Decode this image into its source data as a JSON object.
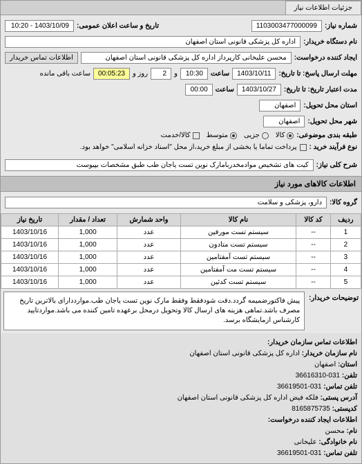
{
  "tab": {
    "label": "جزئیات اطلاعات نیاز"
  },
  "top": {
    "req_no_label": "شماره نیاز:",
    "req_no": "1103003477000099",
    "announce_label": "تاریخ و ساعت اعلان عمومی:",
    "announce_val": "1403/10/09 - 10:20",
    "buyer_label": "نام دستگاه خریدار:",
    "buyer": "اداره کل پزشکی قانونی استان اصفهان",
    "creator_label": "ایجاد کننده درخواست:",
    "creator": "محسن علیخانی کارپرداز اداره کل پزشکی قانونی استان اصفهان",
    "contact_btn": "اطلاعات تماس خریدار",
    "deadline_from_label": "مهلت ارسال پاسخ: تا تاریخ:",
    "deadline_date": "1403/10/11",
    "time_label": "ساعت",
    "deadline_time": "10:30",
    "remain_label": "و",
    "remain_days": "2",
    "remain_label2": "روز و",
    "remain_time": "00:05:23",
    "remain_suffix": "ساعت باقی مانده",
    "validity_label": "مدت اعتبار تاریخ: تا تاریخ:",
    "validity_date": "1403/10/27",
    "validity_time": "00:00",
    "province_label": "استان محل تحویل:",
    "province": "اصفهان",
    "city_label": "شهر محل تحویل:",
    "city": "اصفهان",
    "category_label": "طبقه بندی موضوعی:",
    "cat_all": "کالا",
    "cat_partial": "جزیی",
    "cat_medium": "متوسط",
    "cat_cash": "کالا/خدمت",
    "process_label": "نوع فرآیند خرید :",
    "process_note": "پرداخت تماما یا بخشی از مبلغ خرید،از محل \"اسناد خزانه اسلامی\" خواهد بود.",
    "desc_label": "شرح کلی نیاز:",
    "desc_val": "کیت های تشخیص موادمخدربامارک نوین تست یاجان طب طبق مشخصات بپیوست"
  },
  "group": {
    "header": "اطلاعات کالاهای مورد نیاز",
    "group_label": "گروه کالا:",
    "group_val": "دارو، پزشکی و سلامت"
  },
  "table": {
    "headers": [
      "ردیف",
      "کد کالا",
      "نام کالا",
      "واحد شمارش",
      "تعداد / مقدار",
      "تاریخ نیاز"
    ],
    "rows": [
      [
        "1",
        "--",
        "سیستم تست مورفین",
        "عدد",
        "1,000",
        "1403/10/16"
      ],
      [
        "2",
        "--",
        "سیستم تست متادون",
        "عدد",
        "1,000",
        "1403/10/16"
      ],
      [
        "3",
        "--",
        "سیستم تست آمفتامین",
        "عدد",
        "1,000",
        "1403/10/16"
      ],
      [
        "4",
        "--",
        "سیستم تست مت آمفتامین",
        "عدد",
        "1,000",
        "1403/10/16"
      ],
      [
        "5",
        "--",
        "سیستم تست کدئین",
        "عدد",
        "1,000",
        "1403/10/16"
      ]
    ],
    "watermark": "سامانه هوشمند رصد مناقصات ۱۳۹"
  },
  "buyer_notes": {
    "label": "توضیحات خریدار:",
    "text": "پیش فاکتورضمیمه گردد.دقت شودفقط وفقط مارک نوین تست یاجان طب.موارددارای بالاترین تاریخ مصرف باشد.تماهی هزینه های ارسال کالا وتحویل درمحل برعهده تامین کننده می باشد.مواردتایید کارشناس ازمایشگاه برسد."
  },
  "contact": {
    "header": "اطلاعات تماس سازمان خریدار:",
    "org_label": "نام سازمان خریدار:",
    "org": "اداره کل پزشکی قانونی استان اصفهان",
    "prov_label": "استان:",
    "prov": "اصفهان",
    "phone1_label": "تلفن:",
    "phone1": "031-36616310",
    "fax_label": "تلفن تماس:",
    "fax": "031-36619501",
    "addr_label": "آدرس پستی:",
    "addr": "فلکه فیض اداره کل پزشکی قانونی استان اصفهان",
    "post_label": "کدپستی:",
    "post": "8165875735",
    "creator2_label": "اطلاعات ایجاد کننده درخواست:",
    "fname_label": "نام:",
    "fname": "محسن",
    "lname_label": "نام خانوادگی:",
    "lname": "علیخانی",
    "phone2_label": "تلفن تماس:",
    "phone2": "031-36619501"
  }
}
